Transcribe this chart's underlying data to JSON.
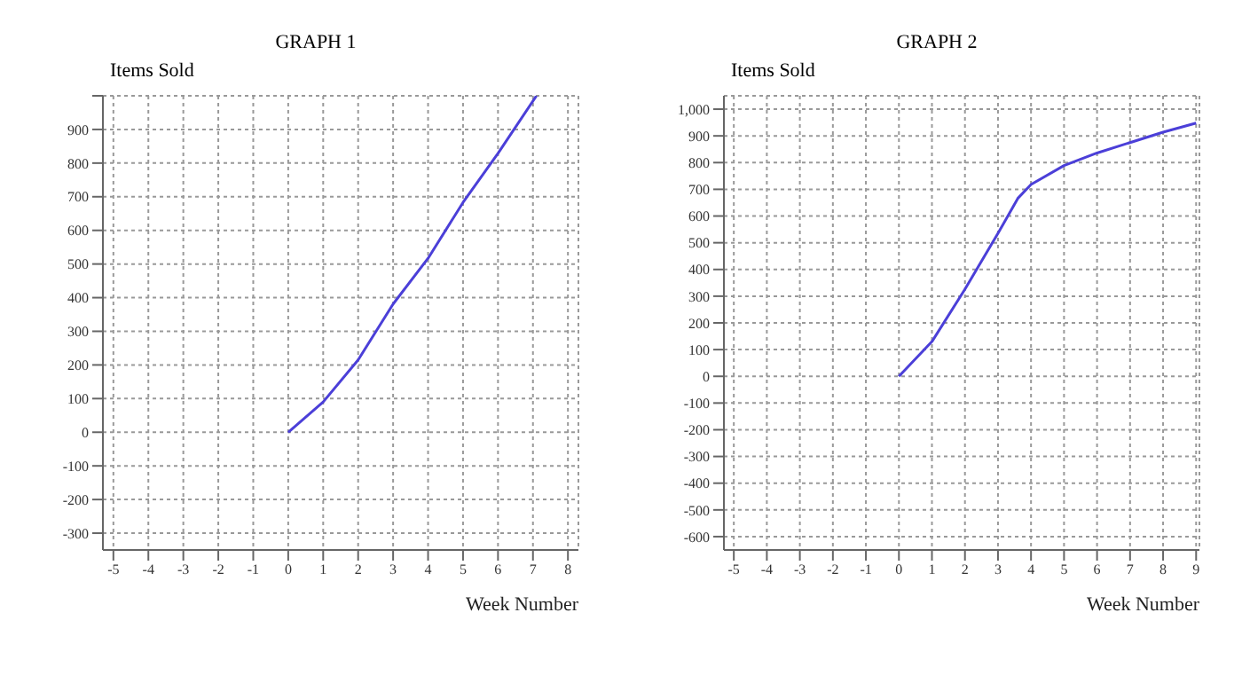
{
  "chart_data": [
    {
      "type": "line",
      "title": "GRAPH 1",
      "xlabel": "Week Number",
      "ylabel": "Items Sold",
      "x": [
        0,
        1,
        2,
        3,
        4,
        5,
        6,
        7.1
      ],
      "series": [
        {
          "color": "#4b3fd8",
          "values": [
            0,
            90,
            215,
            381,
            517,
            683,
            829,
            1000
          ]
        }
      ],
      "xlim": [
        -5.3,
        8.3
      ],
      "xticks": [
        -5,
        -4,
        -3,
        -2,
        -1,
        0,
        1,
        2,
        3,
        4,
        5,
        6,
        7,
        8
      ],
      "ylim": [
        -350,
        1000
      ],
      "yticks": [
        -300,
        -200,
        -100,
        0,
        100,
        200,
        300,
        400,
        500,
        600,
        700,
        800,
        900,
        {
          "value": 1000,
          "label": null
        }
      ],
      "grid": true,
      "marker": "none"
    },
    {
      "type": "line",
      "title": "GRAPH 2",
      "xlabel": "Week Number",
      "ylabel": "Items Sold",
      "x": [
        0,
        1,
        2,
        3,
        3.6,
        4,
        5,
        6,
        7,
        8,
        9
      ],
      "series": [
        {
          "color": "#4b3fd8",
          "values": [
            0,
            130,
            326,
            535,
            666,
            718,
            789,
            836,
            875,
            914,
            948
          ]
        }
      ],
      "xlim": [
        -5.3,
        9.1
      ],
      "xticks": [
        -5,
        -4,
        -3,
        -2,
        -1,
        0,
        1,
        2,
        3,
        4,
        5,
        6,
        7,
        8,
        9
      ],
      "ylim": [
        -650,
        1050
      ],
      "yticks": [
        -600,
        -500,
        -400,
        -300,
        -200,
        -100,
        0,
        100,
        200,
        300,
        400,
        500,
        600,
        700,
        800,
        900,
        {
          "value": 1000,
          "label": "1,000"
        }
      ],
      "grid": true,
      "marker": "none"
    }
  ]
}
